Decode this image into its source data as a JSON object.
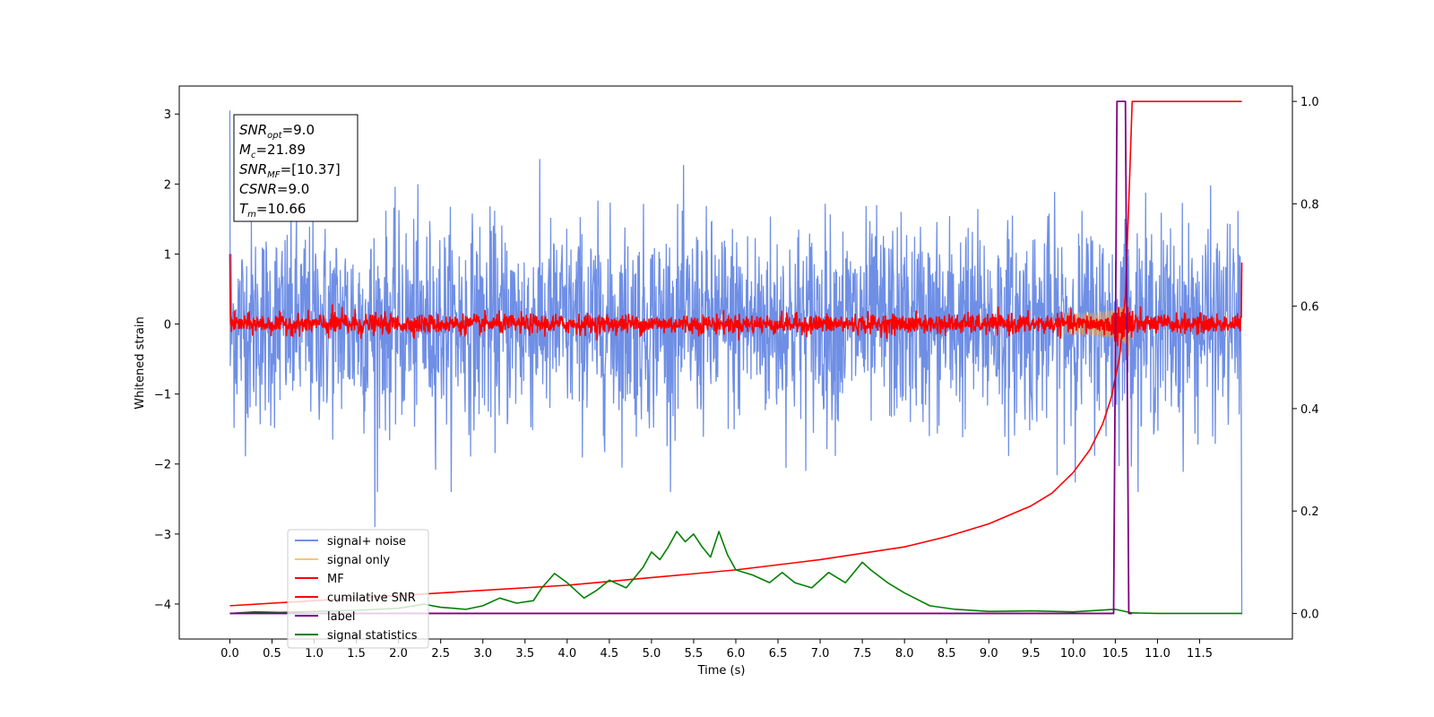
{
  "chart_data": {
    "type": "line",
    "xlabel": "Time (s)",
    "ylabel": "Whitened strain",
    "xlim": [
      -0.6,
      12.6
    ],
    "ylim": [
      -4.5,
      3.4
    ],
    "y2lim": [
      -0.05,
      1.03
    ],
    "x_ticks": [
      "0.0",
      "0.5",
      "1.0",
      "1.5",
      "2.0",
      "2.5",
      "3.0",
      "3.5",
      "4.0",
      "4.5",
      "5.0",
      "5.5",
      "6.0",
      "6.5",
      "7.0",
      "7.5",
      "8.0",
      "8.5",
      "9.0",
      "9.5",
      "10.0",
      "10.5",
      "11.0",
      "11.5"
    ],
    "y_ticks": [
      "3",
      "2",
      "1",
      "0",
      "−1",
      "−2",
      "−3",
      "−4"
    ],
    "y2_ticks": [
      "1.0",
      "0.8",
      "0.6",
      "0.4",
      "0.2",
      "0.0"
    ],
    "legend_position": "lower-left",
    "grid": false,
    "annotation": [
      {
        "name": "SNR",
        "sub": "opt",
        "value": "=9.0"
      },
      {
        "name": "M",
        "sub": "c",
        "value": "=21.89"
      },
      {
        "name": "SNR",
        "sub": "MF",
        "value": "=[10.37]"
      },
      {
        "name": "CSNR",
        "sub": "",
        "value": "=9.0"
      },
      {
        "name": "T",
        "sub": "m",
        "value": "=10.66"
      }
    ],
    "series": [
      {
        "name": "signal+ noise",
        "color": "#6f8fe6",
        "axis": "left",
        "kind": "noise",
        "std": 0.72,
        "x_range": [
          0,
          12
        ],
        "peak_values": [
          3.05,
          -2.9,
          -4.15
        ]
      },
      {
        "name": "signal only",
        "color": "#f5c86b",
        "axis": "left",
        "kind": "chirp",
        "merger_time": 10.66,
        "peak_amplitude": 0.35
      },
      {
        "name": "MF",
        "color": "#ff0000",
        "axis": "left",
        "kind": "noise",
        "std": 0.07,
        "x_range": [
          0,
          12
        ],
        "start_value": 1.0,
        "end_value": 0.88
      },
      {
        "name": "cumilative SNR",
        "color": "#ff0000",
        "axis": "right",
        "x": [
          0,
          1,
          2,
          3,
          4,
          5,
          6,
          7,
          8,
          8.5,
          9,
          9.5,
          9.75,
          10.0,
          10.2,
          10.35,
          10.45,
          10.55,
          10.62,
          10.67,
          10.7,
          12
        ],
        "y": [
          0.015,
          0.025,
          0.035,
          0.045,
          0.055,
          0.07,
          0.085,
          0.105,
          0.13,
          0.15,
          0.175,
          0.21,
          0.235,
          0.275,
          0.32,
          0.37,
          0.42,
          0.5,
          0.62,
          0.85,
          1.0,
          1.0
        ]
      },
      {
        "name": "label",
        "color": "#800080",
        "axis": "right",
        "x": [
          0,
          10.48,
          10.52,
          10.62,
          10.66,
          10.7
        ],
        "y": [
          0,
          0,
          1,
          1,
          0,
          0
        ]
      },
      {
        "name": "signal statistics",
        "color": "#008000",
        "axis": "right",
        "x": [
          0,
          0.3,
          0.6,
          1.0,
          1.5,
          2.0,
          2.3,
          2.5,
          2.8,
          3.0,
          3.2,
          3.4,
          3.6,
          3.7,
          3.85,
          4.0,
          4.2,
          4.35,
          4.5,
          4.7,
          4.9,
          5.0,
          5.1,
          5.2,
          5.3,
          5.4,
          5.5,
          5.6,
          5.7,
          5.8,
          5.9,
          6.0,
          6.2,
          6.4,
          6.55,
          6.7,
          6.9,
          7.1,
          7.3,
          7.5,
          7.6,
          7.8,
          8.0,
          8.3,
          8.6,
          9.0,
          9.5,
          10.0,
          10.5,
          10.7,
          11.0,
          12.0
        ],
        "y": [
          0.0,
          0.003,
          0.002,
          0.004,
          0.006,
          0.01,
          0.018,
          0.012,
          0.008,
          0.015,
          0.03,
          0.02,
          0.025,
          0.05,
          0.078,
          0.06,
          0.03,
          0.045,
          0.065,
          0.05,
          0.09,
          0.12,
          0.105,
          0.13,
          0.16,
          0.14,
          0.155,
          0.13,
          0.11,
          0.16,
          0.115,
          0.085,
          0.075,
          0.06,
          0.08,
          0.06,
          0.05,
          0.08,
          0.06,
          0.1,
          0.085,
          0.06,
          0.04,
          0.015,
          0.008,
          0.004,
          0.005,
          0.003,
          0.008,
          0.001,
          0.0,
          0.0
        ]
      }
    ]
  }
}
